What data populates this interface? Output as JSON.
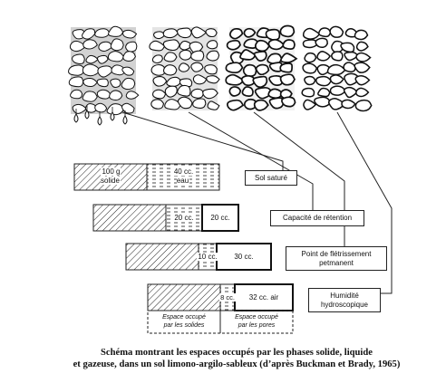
{
  "bars": [
    {
      "solid_label": "100 g\nsolide",
      "water_label": "40 cc.\neau",
      "air_label": ""
    },
    {
      "solid_label": "",
      "water_label": "20 cc.",
      "air_label": "20 cc."
    },
    {
      "solid_label": "",
      "water_label": "10 cc.",
      "air_label": "30 cc."
    },
    {
      "solid_label": "",
      "water_label": "8 cc.",
      "air_label": "32 cc. air"
    }
  ],
  "states": [
    {
      "label": "Sol saturé"
    },
    {
      "label": "Capacité de rétention"
    },
    {
      "label": "Point de flétrissement\npetmanent"
    },
    {
      "label": "Humidité\nhydroscopique"
    }
  ],
  "footnotes": {
    "solids": "Espace occupé\npar les solides",
    "pores": "Espace occupé\npar les pores"
  },
  "caption": {
    "line1": "Schéma montrant les espaces occupés par les phases solide, liquide",
    "line2": "et gazeuse, dans un sol limono-argilo-sableux (d’après Buckman et Brady, 1965)"
  },
  "colors": {
    "ink": "#111111",
    "background": "#ffffff"
  }
}
